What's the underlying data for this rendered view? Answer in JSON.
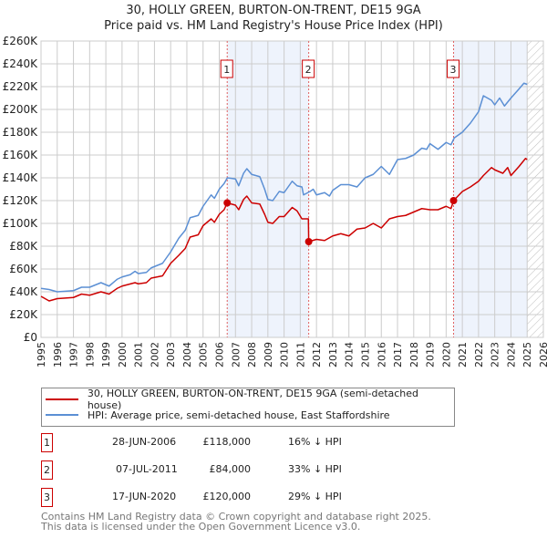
{
  "chart_data": {
    "type": "line",
    "title": "30, HOLLY GREEN, BURTON-ON-TRENT, DE15 9GA",
    "subtitle": "Price paid vs. HM Land Registry's House Price Index (HPI)",
    "xlim": [
      1995,
      2026
    ],
    "ylim": [
      0,
      260000
    ],
    "grid": true,
    "x_ticks": [
      "1995",
      "1996",
      "1997",
      "1998",
      "1999",
      "2000",
      "2001",
      "2002",
      "2003",
      "2004",
      "2005",
      "2006",
      "2007",
      "2008",
      "2009",
      "2010",
      "2011",
      "2012",
      "2013",
      "2014",
      "2015",
      "2016",
      "2017",
      "2018",
      "2019",
      "2020",
      "2021",
      "2022",
      "2023",
      "2024",
      "2025",
      "2026"
    ],
    "y_ticks": [
      {
        "v": 0,
        "label": "£0"
      },
      {
        "v": 20000,
        "label": "£20K"
      },
      {
        "v": 40000,
        "label": "£40K"
      },
      {
        "v": 60000,
        "label": "£60K"
      },
      {
        "v": 80000,
        "label": "£80K"
      },
      {
        "v": 100000,
        "label": "£100K"
      },
      {
        "v": 120000,
        "label": "£120K"
      },
      {
        "v": 140000,
        "label": "£140K"
      },
      {
        "v": 160000,
        "label": "£160K"
      },
      {
        "v": 180000,
        "label": "£180K"
      },
      {
        "v": 200000,
        "label": "£200K"
      },
      {
        "v": 220000,
        "label": "£220K"
      },
      {
        "v": 240000,
        "label": "£240K"
      },
      {
        "v": 260000,
        "label": "£260K"
      }
    ],
    "series": [
      {
        "name": "30, HOLLY GREEN, BURTON-ON-TRENT, DE15 9GA (semi-detached house)",
        "color": "#cc0000",
        "x": [
          1995,
          1995.5,
          1996,
          1997,
          1997.5,
          1998,
          1998.7,
          1999.2,
          1999.7,
          2000,
          2000.8,
          2001,
          2001.5,
          2001.8,
          2002.5,
          2003,
          2003.5,
          2003.9,
          2004.2,
          2004.7,
          2005,
          2005.5,
          2005.7,
          2006,
          2006.3,
          2006.49,
          2007,
          2007.2,
          2007.5,
          2007.7,
          2008,
          2008.5,
          2008.8,
          2009,
          2009.3,
          2009.7,
          2010,
          2010.5,
          2010.8,
          2011.1,
          2011.5,
          2011.52,
          2012,
          2012.5,
          2013,
          2013.5,
          2014,
          2014.5,
          2015,
          2015.5,
          2016,
          2016.5,
          2017,
          2017.5,
          2018,
          2018.5,
          2019,
          2019.5,
          2020,
          2020.3,
          2020.46,
          2021,
          2021.5,
          2022,
          2022.3,
          2022.8,
          2023,
          2023.5,
          2023.8,
          2024,
          2024.5,
          2024.9,
          2025
        ],
        "y": [
          36000,
          32000,
          34000,
          35000,
          38000,
          37000,
          40000,
          38000,
          43000,
          45000,
          48000,
          47000,
          48000,
          52000,
          54000,
          65000,
          72000,
          78000,
          88000,
          90000,
          98000,
          104000,
          101000,
          108000,
          112000,
          118000,
          116000,
          112000,
          121000,
          124000,
          118000,
          117000,
          108000,
          101000,
          100000,
          106000,
          106000,
          114000,
          111000,
          104000,
          104000,
          84000,
          86000,
          85000,
          89000,
          91000,
          89000,
          95000,
          96000,
          100000,
          96000,
          104000,
          106000,
          107000,
          110000,
          113000,
          112000,
          112000,
          115000,
          113000,
          120000,
          128000,
          132000,
          137000,
          142000,
          149000,
          147000,
          144000,
          149000,
          142000,
          150000,
          157000,
          156000
        ]
      },
      {
        "name": "HPI: Average price, semi-detached house, East Staffordshire",
        "color": "#5b8fd4",
        "x": [
          1995,
          1995.5,
          1996,
          1997,
          1997.5,
          1998,
          1998.7,
          1999.2,
          1999.7,
          2000,
          2000.5,
          2000.8,
          2001,
          2001.5,
          2001.8,
          2002.5,
          2003,
          2003.5,
          2003.9,
          2004.2,
          2004.7,
          2005,
          2005.5,
          2005.7,
          2006,
          2006.3,
          2006.5,
          2007,
          2007.2,
          2007.5,
          2007.7,
          2008,
          2008.5,
          2008.8,
          2009,
          2009.3,
          2009.7,
          2010,
          2010.5,
          2010.8,
          2011.1,
          2011.2,
          2011.6,
          2011.8,
          2012,
          2012.5,
          2012.8,
          2013,
          2013.5,
          2014,
          2014.5,
          2015,
          2015.5,
          2016,
          2016.5,
          2017,
          2017.5,
          2018,
          2018.5,
          2018.8,
          2019,
          2019.5,
          2020,
          2020.3,
          2020.5,
          2021,
          2021.5,
          2022,
          2022.3,
          2022.8,
          2023,
          2023.3,
          2023.6,
          2024,
          2024.5,
          2024.8,
          2025
        ],
        "y": [
          43000,
          42000,
          40000,
          41000,
          44000,
          44000,
          48000,
          45000,
          51000,
          53000,
          55000,
          58000,
          56000,
          57000,
          61000,
          65000,
          75000,
          87000,
          94000,
          105000,
          107000,
          115000,
          125000,
          122000,
          130000,
          135000,
          140000,
          139000,
          133000,
          144000,
          148000,
          143000,
          141000,
          130000,
          121000,
          120000,
          128000,
          127000,
          137000,
          133000,
          132000,
          125000,
          128000,
          130000,
          125000,
          127000,
          124000,
          129000,
          134000,
          134000,
          132000,
          140000,
          143000,
          150000,
          143000,
          156000,
          157000,
          160000,
          166000,
          165000,
          170000,
          165000,
          171000,
          169000,
          175000,
          180000,
          188000,
          198000,
          212000,
          208000,
          204000,
          210000,
          203000,
          210000,
          218000,
          223000,
          222000
        ]
      }
    ],
    "sales": [
      {
        "id": "1",
        "x": 2006.49,
        "y": 118000
      },
      {
        "id": "2",
        "x": 2011.52,
        "y": 84000
      },
      {
        "id": "3",
        "x": 2020.46,
        "y": 120000
      }
    ],
    "data_end": 2025.0
  },
  "legend": {
    "property": "30, HOLLY GREEN, BURTON-ON-TRENT, DE15 9GA (semi-detached house)",
    "hpi": "HPI: Average price, semi-detached house, East Staffordshire"
  },
  "transactions": [
    {
      "num": "1",
      "date": "28-JUN-2006",
      "price": "£118,000",
      "hpi": "16% ↓ HPI"
    },
    {
      "num": "2",
      "date": "07-JUL-2011",
      "price": "£84,000",
      "hpi": "33% ↓ HPI"
    },
    {
      "num": "3",
      "date": "17-JUN-2020",
      "price": "£120,000",
      "hpi": "29% ↓ HPI"
    }
  ],
  "footer": {
    "line1": "Contains HM Land Registry data © Crown copyright and database right 2025.",
    "line2": "This data is licensed under the Open Government Licence v3.0."
  }
}
